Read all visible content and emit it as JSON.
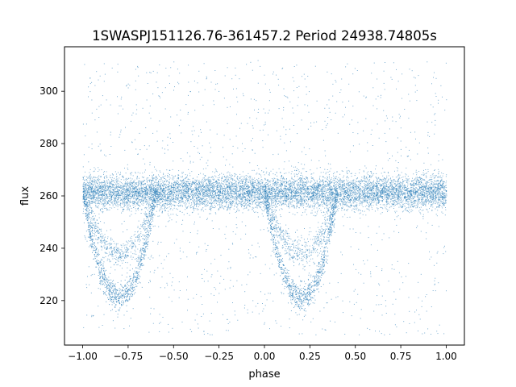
{
  "chart_data": {
    "type": "scatter",
    "title": "1SWASPJ151126.76-361457.2 Period 24938.74805s",
    "xlabel": "phase",
    "ylabel": "flux",
    "xlim": [
      -1.1,
      1.1
    ],
    "ylim": [
      203,
      317
    ],
    "x_ticks": [
      -1.0,
      -0.75,
      -0.5,
      -0.25,
      0.0,
      0.25,
      0.5,
      0.75,
      1.0
    ],
    "x_tick_labels": [
      "−1.00",
      "−0.75",
      "−0.50",
      "−0.25",
      "0.00",
      "0.25",
      "0.50",
      "0.75",
      "1.00"
    ],
    "y_ticks": [
      220,
      240,
      260,
      280,
      300
    ],
    "y_tick_labels": [
      "220",
      "240",
      "260",
      "280",
      "300"
    ],
    "grid": false,
    "legend": "none",
    "marker_color": "#1f77b4",
    "phase_range": [
      -1.0,
      1.0
    ],
    "components": [
      {
        "name": "main",
        "center_flux": 261.5,
        "spread": 3.2
      },
      {
        "name": "primary_eclipse",
        "phase_center": -0.8,
        "min_flux": 221,
        "width": 0.2
      },
      {
        "name": "primary_eclipse",
        "phase_center": 0.2,
        "min_flux": 221,
        "width": 0.2
      },
      {
        "name": "secondary_branch",
        "phase_center": -0.8,
        "min_flux": 238,
        "width": 0.2
      },
      {
        "name": "secondary_branch",
        "phase_center": 0.2,
        "min_flux": 238,
        "width": 0.2
      },
      {
        "name": "outliers",
        "flux_range": [
          207,
          312
        ]
      }
    ]
  }
}
